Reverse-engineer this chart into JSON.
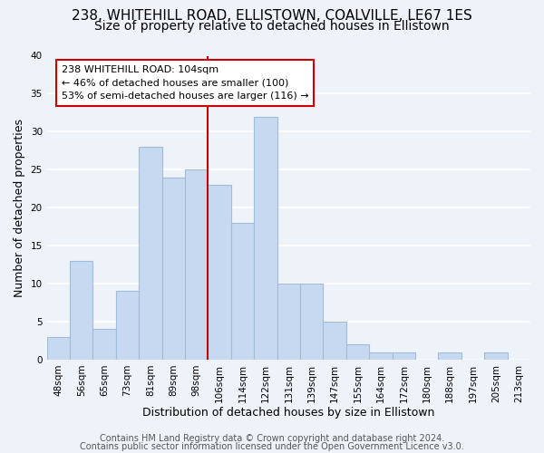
{
  "title_line1": "238, WHITEHILL ROAD, ELLISTOWN, COALVILLE, LE67 1ES",
  "title_line2": "Size of property relative to detached houses in Ellistown",
  "xlabel": "Distribution of detached houses by size in Ellistown",
  "ylabel": "Number of detached properties",
  "bar_labels": [
    "48sqm",
    "56sqm",
    "65sqm",
    "73sqm",
    "81sqm",
    "89sqm",
    "98sqm",
    "106sqm",
    "114sqm",
    "122sqm",
    "131sqm",
    "139sqm",
    "147sqm",
    "155sqm",
    "164sqm",
    "172sqm",
    "180sqm",
    "188sqm",
    "197sqm",
    "205sqm",
    "213sqm"
  ],
  "bar_values": [
    3,
    13,
    4,
    9,
    28,
    24,
    25,
    23,
    18,
    32,
    10,
    10,
    5,
    2,
    1,
    1,
    0,
    1,
    0,
    1,
    0
  ],
  "bar_color": "#c7d9f0",
  "bar_edgecolor": "#a0bcd8",
  "vline_x_index": 7,
  "vline_color": "#cc0000",
  "annotation_title": "238 WHITEHILL ROAD: 104sqm",
  "annotation_line2": "← 46% of detached houses are smaller (100)",
  "annotation_line3": "53% of semi-detached houses are larger (116) →",
  "annotation_box_edgecolor": "#cc0000",
  "annotation_box_facecolor": "#ffffff",
  "ylim": [
    0,
    40
  ],
  "yticks": [
    0,
    5,
    10,
    15,
    20,
    25,
    30,
    35,
    40
  ],
  "footer_line1": "Contains HM Land Registry data © Crown copyright and database right 2024.",
  "footer_line2": "Contains public sector information licensed under the Open Government Licence v3.0.",
  "background_color": "#eef2f9",
  "plot_background_color": "#eef2f9",
  "grid_color": "#ffffff",
  "title_fontsize": 11,
  "subtitle_fontsize": 10,
  "axis_label_fontsize": 9,
  "tick_fontsize": 7.5,
  "footer_fontsize": 7
}
